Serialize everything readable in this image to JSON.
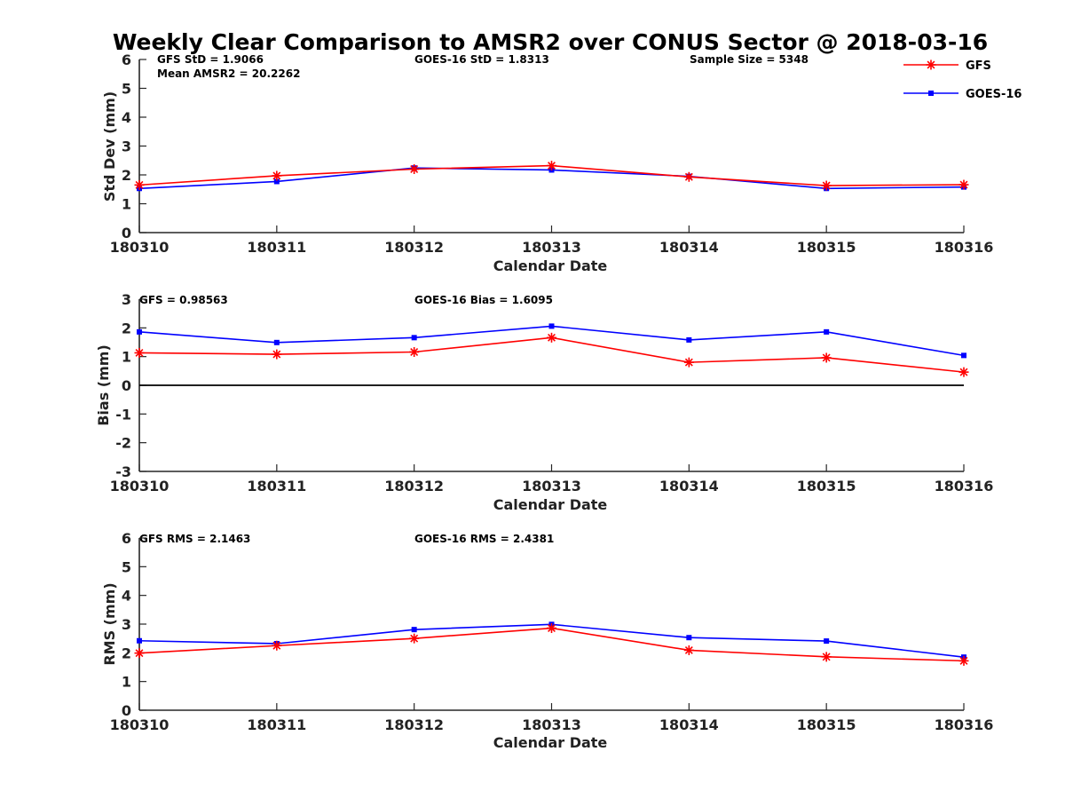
{
  "figure": {
    "title": "Weekly Clear Comparison to AMSR2 over CONUS Sector @ 2018-03-16"
  },
  "legend": {
    "placement": "top-right",
    "items": [
      {
        "name": "GFS",
        "color": "#ff0000",
        "marker": "asterisk"
      },
      {
        "name": "GOES-16",
        "color": "#0000ff",
        "marker": "square"
      }
    ]
  },
  "chart_data": [
    {
      "type": "line",
      "title": "",
      "xlabel": "Calendar Date",
      "ylabel": "Std Dev (mm)",
      "categories": [
        "180310",
        "180311",
        "180312",
        "180313",
        "180314",
        "180315",
        "180316"
      ],
      "ylim": [
        0,
        6
      ],
      "yticks": [
        "0",
        "1",
        "2",
        "3",
        "4",
        "5",
        "6"
      ],
      "grid": false,
      "zero_line": false,
      "annotations": [
        "GFS StD = 1.9066",
        "Mean AMSR2 = 20.2262",
        "GOES-16 StD = 1.8313",
        "Sample Size = 5348"
      ],
      "series": [
        {
          "name": "GFS",
          "color": "#ff0000",
          "marker": "asterisk",
          "values": [
            1.65,
            1.97,
            2.2,
            2.32,
            1.93,
            1.63,
            1.66
          ]
        },
        {
          "name": "GOES-16",
          "color": "#0000ff",
          "marker": "square",
          "values": [
            1.53,
            1.77,
            2.24,
            2.17,
            1.95,
            1.53,
            1.58
          ]
        }
      ]
    },
    {
      "type": "line",
      "title": "",
      "xlabel": "Calendar Date",
      "ylabel": "Bias (mm)",
      "categories": [
        "180310",
        "180311",
        "180312",
        "180313",
        "180314",
        "180315",
        "180316"
      ],
      "ylim": [
        -3,
        3
      ],
      "yticks": [
        "-3",
        "-2",
        "-1",
        "0",
        "1",
        "2",
        "3"
      ],
      "grid": false,
      "zero_line": true,
      "annotations": [
        "GFS = 0.98563",
        "GOES-16 Bias  = 1.6095"
      ],
      "series": [
        {
          "name": "GFS",
          "color": "#ff0000",
          "marker": "asterisk",
          "values": [
            1.13,
            1.08,
            1.16,
            1.66,
            0.8,
            0.96,
            0.46
          ]
        },
        {
          "name": "GOES-16",
          "color": "#0000ff",
          "marker": "square",
          "values": [
            1.86,
            1.49,
            1.66,
            2.06,
            1.58,
            1.86,
            1.04
          ]
        }
      ]
    },
    {
      "type": "line",
      "title": "",
      "xlabel": "Calendar Date",
      "ylabel": "RMS (mm)",
      "categories": [
        "180310",
        "180311",
        "180312",
        "180313",
        "180314",
        "180315",
        "180316"
      ],
      "ylim": [
        0,
        6
      ],
      "yticks": [
        "0",
        "1",
        "2",
        "3",
        "4",
        "5",
        "6"
      ],
      "grid": false,
      "zero_line": false,
      "annotations": [
        "GFS RMS = 2.1463",
        "GOES-16 RMS = 2.4381"
      ],
      "series": [
        {
          "name": "GFS",
          "color": "#ff0000",
          "marker": "asterisk",
          "values": [
            1.99,
            2.25,
            2.5,
            2.86,
            2.09,
            1.86,
            1.72
          ]
        },
        {
          "name": "GOES-16",
          "color": "#0000ff",
          "marker": "square",
          "values": [
            2.42,
            2.32,
            2.81,
            2.99,
            2.53,
            2.41,
            1.85
          ]
        }
      ]
    }
  ]
}
